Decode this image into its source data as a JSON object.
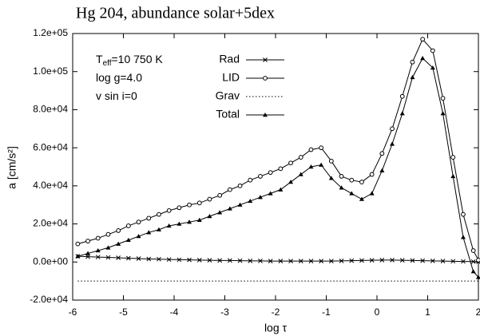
{
  "chart_data": {
    "type": "line",
    "title": "Hg 204, abundance solar+5dex",
    "xlabel": "log τ",
    "ylabel": "a [cm/s²]",
    "annotations": [
      {
        "base": "T",
        "sub": "eff",
        "rest": "=10 750 K"
      },
      {
        "base": "log g=4.0"
      },
      {
        "base": "v sin i=0"
      }
    ],
    "x": [
      -5.9,
      -5.7,
      -5.5,
      -5.3,
      -5.1,
      -4.9,
      -4.7,
      -4.5,
      -4.3,
      -4.1,
      -3.9,
      -3.7,
      -3.5,
      -3.3,
      -3.1,
      -2.9,
      -2.7,
      -2.5,
      -2.3,
      -2.1,
      -1.9,
      -1.7,
      -1.5,
      -1.3,
      -1.1,
      -0.9,
      -0.7,
      -0.5,
      -0.3,
      -0.1,
      0.1,
      0.3,
      0.5,
      0.7,
      0.9,
      1.1,
      1.3,
      1.5,
      1.7,
      1.9,
      2.0
    ],
    "series": [
      {
        "name": "Rad",
        "color": "#000000",
        "marker": "cross",
        "dash": "solid",
        "values": [
          3000,
          2800,
          2600,
          2400,
          2200,
          2000,
          1800,
          1600,
          1500,
          1300,
          1200,
          1100,
          1000,
          900,
          800,
          800,
          700,
          600,
          600,
          500,
          500,
          500,
          500,
          500,
          500,
          500,
          600,
          700,
          800,
          900,
          1000,
          1000,
          900,
          800,
          700,
          600,
          500,
          400,
          300,
          200,
          100
        ]
      },
      {
        "name": "LID",
        "color": "#000000",
        "marker": "circle",
        "dash": "solid",
        "values": [
          9500,
          11000,
          12500,
          14500,
          16500,
          19000,
          21000,
          23000,
          25000,
          27000,
          28500,
          30000,
          31000,
          33000,
          35000,
          38000,
          40000,
          43000,
          45000,
          47000,
          49000,
          52000,
          55000,
          59000,
          60000,
          53000,
          45000,
          43000,
          42000,
          46000,
          57000,
          70000,
          87000,
          105000,
          117000,
          111000,
          86000,
          55000,
          25000,
          6000,
          1000
        ]
      },
      {
        "name": "Grav",
        "color": "#000000",
        "marker": "none",
        "dash": "dotted",
        "values": [
          -10000,
          -10000,
          -10000,
          -10000,
          -10000,
          -10000,
          -10000,
          -10000,
          -10000,
          -10000,
          -10000,
          -10000,
          -10000,
          -10000,
          -10000,
          -10000,
          -10000,
          -10000,
          -10000,
          -10000,
          -10000,
          -10000,
          -10000,
          -10000,
          -10000,
          -10000,
          -10000,
          -10000,
          -10000,
          -10000,
          -10000,
          -10000,
          -10000,
          -10000,
          -10000,
          -10000,
          -10000,
          -10000,
          -10000,
          -10000,
          -10000
        ]
      },
      {
        "name": "Total",
        "color": "#000000",
        "marker": "triangle",
        "dash": "solid",
        "values": [
          3000,
          4500,
          6000,
          7500,
          9500,
          11500,
          13500,
          15500,
          17000,
          19000,
          20000,
          21000,
          22000,
          24000,
          26000,
          28000,
          30000,
          32000,
          34000,
          36000,
          38000,
          42000,
          46000,
          50000,
          51000,
          44000,
          39000,
          36000,
          33000,
          36000,
          48000,
          62000,
          78000,
          97000,
          107000,
          102000,
          78000,
          45000,
          13000,
          -5000,
          -8000
        ]
      }
    ],
    "xlim": [
      -6,
      2
    ],
    "xticks": [
      -6,
      -5,
      -4,
      -3,
      -2,
      -1,
      0,
      1,
      2
    ],
    "ylim": [
      -20000,
      120000
    ],
    "yticks": [
      {
        "value": -20000,
        "label": "-2.0e+04"
      },
      {
        "value": 0,
        "label": "0.0e+00"
      },
      {
        "value": 20000,
        "label": "2.0e+04"
      },
      {
        "value": 40000,
        "label": "4.0e+04"
      },
      {
        "value": 60000,
        "label": "6.0e+04"
      },
      {
        "value": 80000,
        "label": "8.0e+04"
      },
      {
        "value": 100000,
        "label": "1.0e+05"
      },
      {
        "value": 120000,
        "label": "1.2e+05"
      }
    ],
    "grid": false,
    "legend": "top"
  }
}
